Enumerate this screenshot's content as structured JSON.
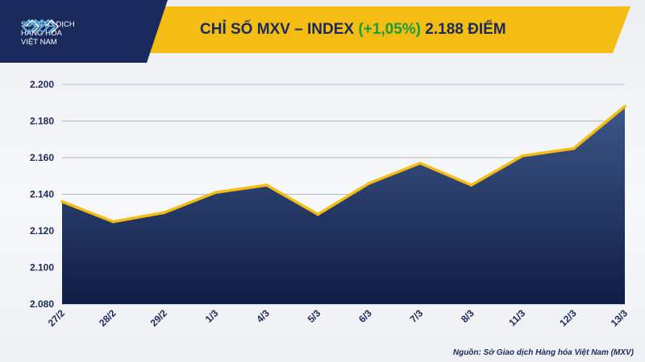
{
  "header": {
    "logo_lines": [
      "SỞ GIAO DỊCH",
      "HÀNG HÓA",
      "VIỆT NAM"
    ],
    "title_main": "CHỈ SỐ MXV – INDEX",
    "title_change": "(+1,05%)",
    "title_value": "2.188 ĐIỂM"
  },
  "colors": {
    "banner": "#f5bd14",
    "banner_dark": "#1b2a5c",
    "line": "#f5bd14",
    "area_top": "#3d5788",
    "area_bottom": "#0f1c44",
    "change_positive": "#1e9b3a",
    "text": "#1b2a5c"
  },
  "icons": {
    "logo": "mxv-logo-icon"
  },
  "chart_data": {
    "type": "area",
    "categories": [
      "27/2",
      "28/2",
      "29/2",
      "1/3",
      "4/3",
      "5/3",
      "6/3",
      "7/3",
      "8/3",
      "11/3",
      "12/3",
      "13/3"
    ],
    "values": [
      2136,
      2125,
      2130,
      2141,
      2145,
      2129,
      2146,
      2157,
      2145,
      2161,
      2165,
      2188
    ],
    "title": "",
    "xlabel": "",
    "ylabel": "",
    "ylim": [
      2080,
      2200
    ],
    "yticks": [
      "2.080",
      "2.100",
      "2.120",
      "2.140",
      "2.160",
      "2.180",
      "2.200"
    ],
    "grid": true
  },
  "source": "Nguồn: Sở Giao dịch Hàng hóa Việt Nam (MXV)"
}
